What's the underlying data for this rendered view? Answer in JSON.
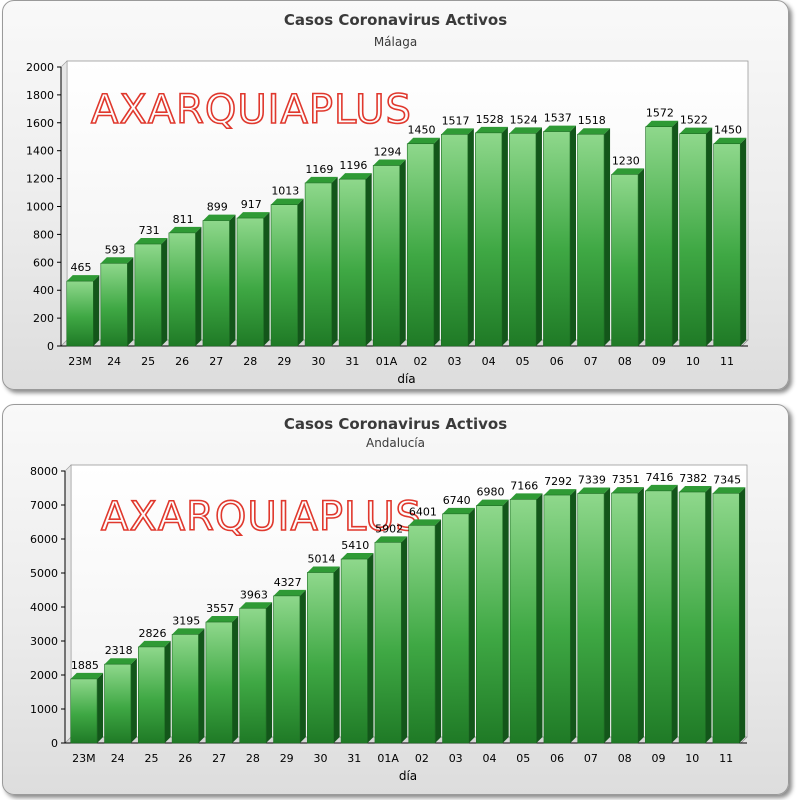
{
  "chart_data": [
    {
      "type": "bar",
      "title": "Casos Coronavirus Activos",
      "subtitle": "Málaga",
      "xlabel": "día",
      "ylabel": "",
      "ylim": [
        0,
        2000
      ],
      "yticks": [
        0,
        200,
        400,
        600,
        800,
        1000,
        1200,
        1400,
        1600,
        1800,
        2000
      ],
      "categories": [
        "23M",
        "24",
        "25",
        "26",
        "27",
        "28",
        "29",
        "30",
        "31",
        "01A",
        "02",
        "03",
        "04",
        "05",
        "06",
        "07",
        "08",
        "09",
        "10",
        "11"
      ],
      "values": [
        465,
        593,
        731,
        811,
        899,
        917,
        1013,
        1169,
        1196,
        1294,
        1450,
        1517,
        1528,
        1524,
        1537,
        1518,
        1230,
        1572,
        1522,
        1450
      ],
      "watermark": "AXARQUIAPLUS",
      "bar_color": "#2e9e3a"
    },
    {
      "type": "bar",
      "title": "Casos Coronavirus Activos",
      "subtitle": "Andalucía",
      "xlabel": "día",
      "ylabel": "",
      "ylim": [
        0,
        8000
      ],
      "yticks": [
        0,
        1000,
        2000,
        3000,
        4000,
        5000,
        6000,
        7000,
        8000
      ],
      "categories": [
        "23M",
        "24",
        "25",
        "26",
        "27",
        "28",
        "29",
        "30",
        "31",
        "01A",
        "02",
        "03",
        "04",
        "05",
        "06",
        "07",
        "08",
        "09",
        "10",
        "11"
      ],
      "values": [
        1885,
        2318,
        2826,
        3195,
        3557,
        3963,
        4327,
        5014,
        5410,
        5902,
        6401,
        6740,
        6980,
        7166,
        7292,
        7339,
        7351,
        7416,
        7382,
        7345
      ],
      "watermark": "AXARQUIAPLUS",
      "bar_color": "#2e9e3a"
    }
  ]
}
